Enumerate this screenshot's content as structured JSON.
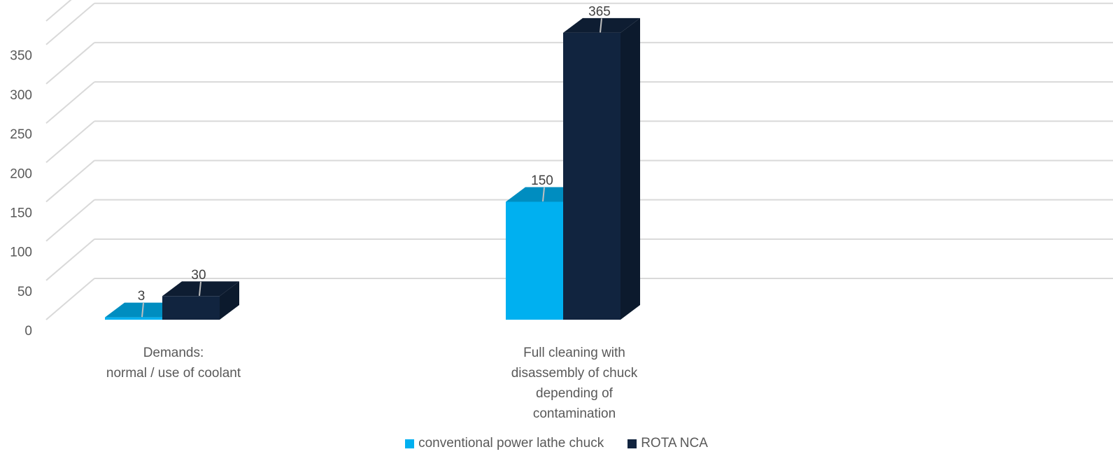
{
  "chart_data": {
    "type": "bar",
    "categories": [
      [
        "Demands:",
        "normal / use of coolant"
      ],
      [
        "Full cleaning with",
        "disassembly of chuck",
        "depending of",
        "contamination"
      ]
    ],
    "series": [
      {
        "name": "conventional power lathe chuck",
        "values": [
          3,
          150
        ],
        "color": "#00B0F0"
      },
      {
        "name": "ROTA NCA",
        "values": [
          30,
          365
        ],
        "color": "#11243F"
      }
    ],
    "yticks": [
      0,
      50,
      100,
      150,
      200,
      250,
      300,
      350
    ],
    "ylim": [
      0,
      380
    ],
    "grid": true,
    "legend_position": "bottom",
    "title": "",
    "xlabel": "",
    "ylabel": ""
  }
}
